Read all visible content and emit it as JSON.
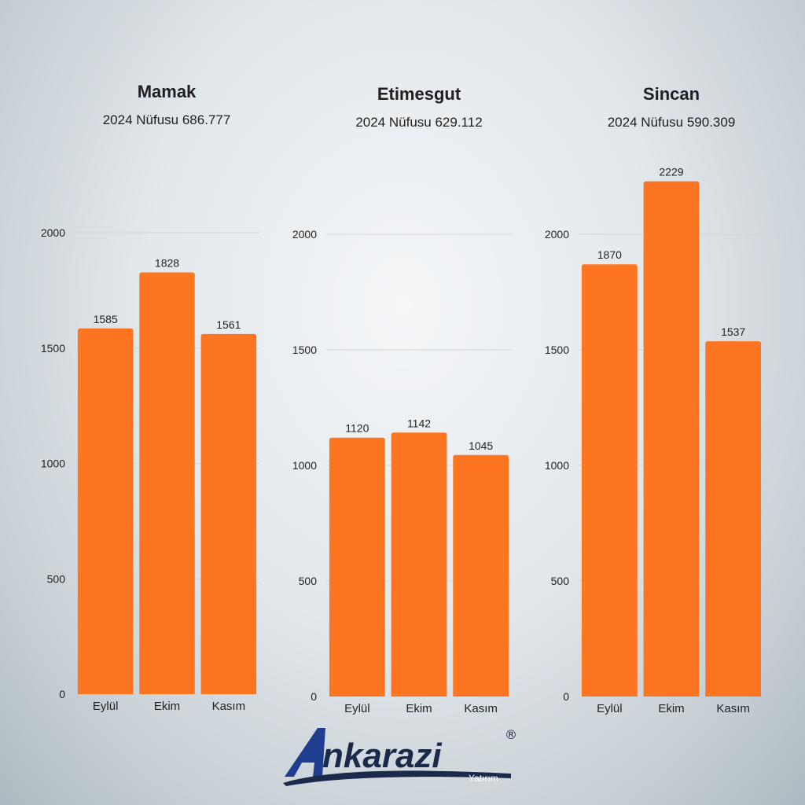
{
  "chart_data": [
    {
      "type": "bar",
      "title": "Mamak",
      "subtitle": "2024 Nüfusu 686.777",
      "categories": [
        "Eylül",
        "Ekim",
        "Kasım"
      ],
      "values": [
        1585,
        1828,
        1561
      ],
      "yticks": [
        0,
        500,
        1000,
        1500,
        2000
      ],
      "ylim": [
        0,
        2000
      ],
      "grid": true,
      "color": "#fd7520"
    },
    {
      "type": "bar",
      "title": "Etimesgut",
      "subtitle": "2024 Nüfusu 629.112",
      "categories": [
        "Eylül",
        "Ekim",
        "Kasım"
      ],
      "values": [
        1120,
        1142,
        1045
      ],
      "yticks": [
        0,
        500,
        1000,
        1500,
        2000
      ],
      "ylim": [
        0,
        2000
      ],
      "grid": true,
      "color": "#fd7520"
    },
    {
      "type": "bar",
      "title": "Sincan",
      "subtitle": "2024 Nüfusu 590.309",
      "categories": [
        "Eylül",
        "Ekim",
        "Kasım"
      ],
      "values": [
        1870,
        2229,
        1537
      ],
      "yticks": [
        0,
        500,
        1000,
        1500,
        2000
      ],
      "ylim": [
        0,
        2000
      ],
      "grid": true,
      "color": "#fd7520"
    }
  ],
  "logo": {
    "brand_prefix": "A",
    "brand_rest": "nkarazi",
    "tagline": "Yatırım",
    "registered": "®",
    "colors": {
      "blue": "#1f3e8f",
      "dark": "#1b2a4a"
    }
  }
}
